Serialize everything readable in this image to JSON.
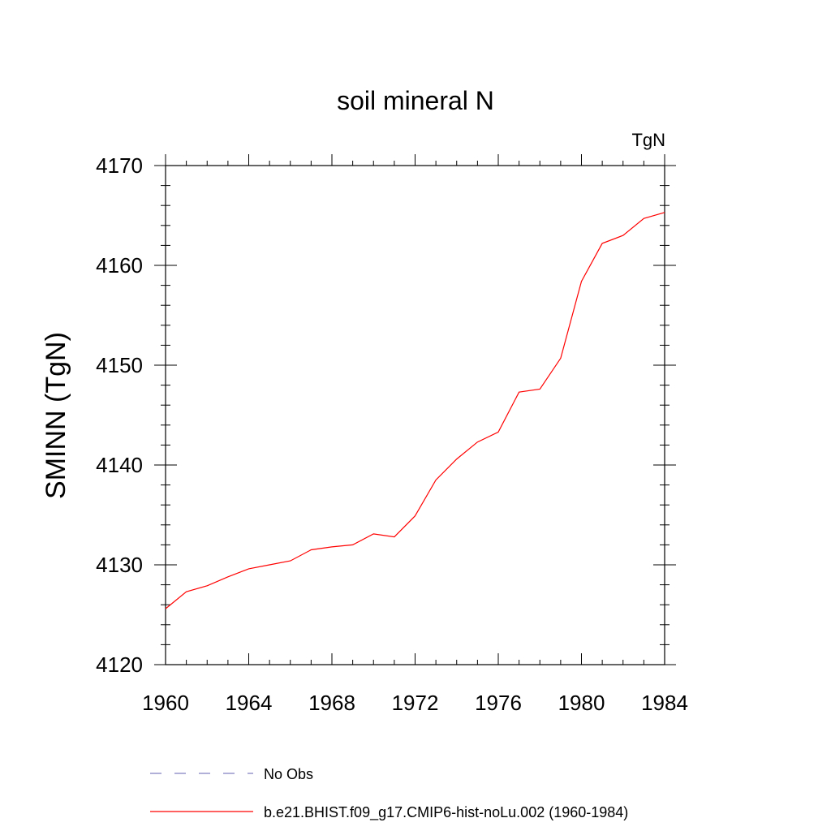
{
  "chart_data": {
    "type": "line",
    "title": "soil mineral N",
    "units_label": "TgN",
    "ylabel": "SMINN  (TgN)",
    "xlabel": "",
    "xlim": [
      1960,
      1984
    ],
    "ylim": [
      4120,
      4170
    ],
    "xticks": [
      "1960",
      "1964",
      "1968",
      "1972",
      "1976",
      "1980",
      "1984"
    ],
    "yticks": [
      "4120",
      "4130",
      "4140",
      "4150",
      "4160",
      "4170"
    ],
    "grid": false,
    "legend_position": "bottom",
    "legend": [
      {
        "label": "No Obs",
        "style": "dashed",
        "color": "#8080c0"
      },
      {
        "label": "b.e21.BHIST.f09_g17.CMIP6-hist-noLu.002 (1960-1984)",
        "style": "solid",
        "color": "#ff0000"
      }
    ],
    "series": [
      {
        "name": "b.e21.BHIST.f09_g17.CMIP6-hist-noLu.002 (1960-1984)",
        "color": "#ff0000",
        "x": [
          1960,
          1961,
          1962,
          1963,
          1964,
          1965,
          1966,
          1967,
          1968,
          1969,
          1970,
          1971,
          1972,
          1973,
          1974,
          1975,
          1976,
          1977,
          1978,
          1979,
          1980,
          1981,
          1982,
          1983,
          1984
        ],
        "y": [
          4125.6,
          4127.3,
          4127.9,
          4128.8,
          4129.6,
          4130.0,
          4130.4,
          4131.5,
          4131.8,
          4132.0,
          4133.1,
          4132.8,
          4134.9,
          4138.5,
          4140.6,
          4142.3,
          4143.3,
          4147.3,
          4147.6,
          4150.7,
          4158.4,
          4162.2,
          4163.0,
          4164.7,
          4165.3
        ]
      }
    ]
  }
}
